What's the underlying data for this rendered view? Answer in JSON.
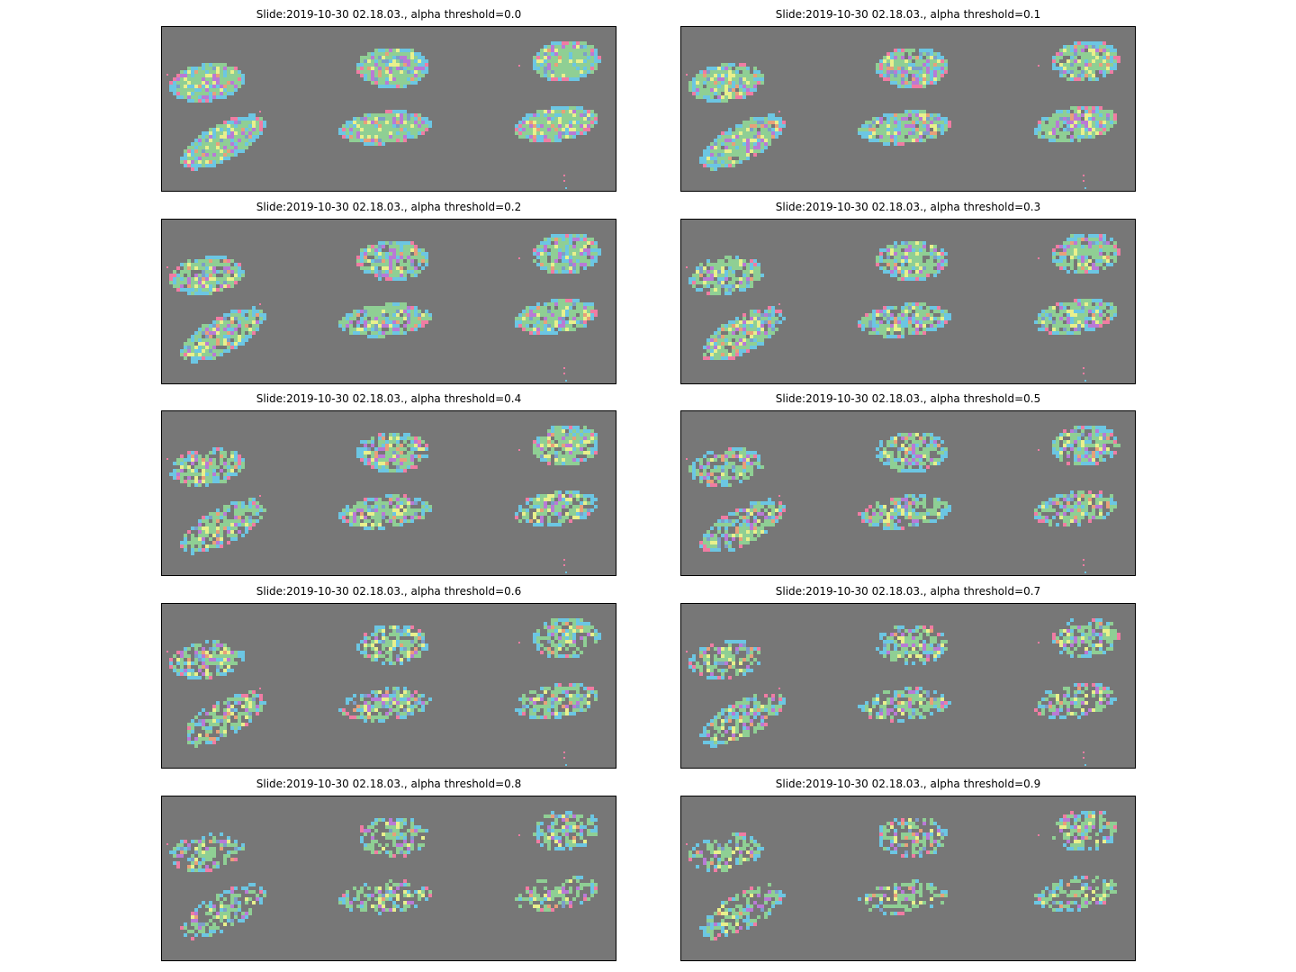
{
  "figure": {
    "background": "#ffffff",
    "panel_background": "#777777",
    "cluster_colors": [
      "#8fcf94",
      "#6cc6e3",
      "#b97ad6",
      "#e9f08c",
      "#f07ca3",
      "#e8a07a",
      "#7d9ec9"
    ]
  },
  "panels": [
    {
      "title": "Slide:2019-10-30 02.18.03., alpha threshold=0.0",
      "threshold": 0.0
    },
    {
      "title": "Slide:2019-10-30 02.18.03., alpha threshold=0.1",
      "threshold": 0.1
    },
    {
      "title": "Slide:2019-10-30 02.18.03., alpha threshold=0.2",
      "threshold": 0.2
    },
    {
      "title": "Slide:2019-10-30 02.18.03., alpha threshold=0.3",
      "threshold": 0.3
    },
    {
      "title": "Slide:2019-10-30 02.18.03., alpha threshold=0.4",
      "threshold": 0.4
    },
    {
      "title": "Slide:2019-10-30 02.18.03., alpha threshold=0.5",
      "threshold": 0.5
    },
    {
      "title": "Slide:2019-10-30 02.18.03., alpha threshold=0.6",
      "threshold": 0.6
    },
    {
      "title": "Slide:2019-10-30 02.18.03., alpha threshold=0.7",
      "threshold": 0.7
    },
    {
      "title": "Slide:2019-10-30 02.18.03., alpha threshold=0.8",
      "threshold": 0.8
    },
    {
      "title": "Slide:2019-10-30 02.18.03., alpha threshold=0.9",
      "threshold": 0.9
    }
  ]
}
